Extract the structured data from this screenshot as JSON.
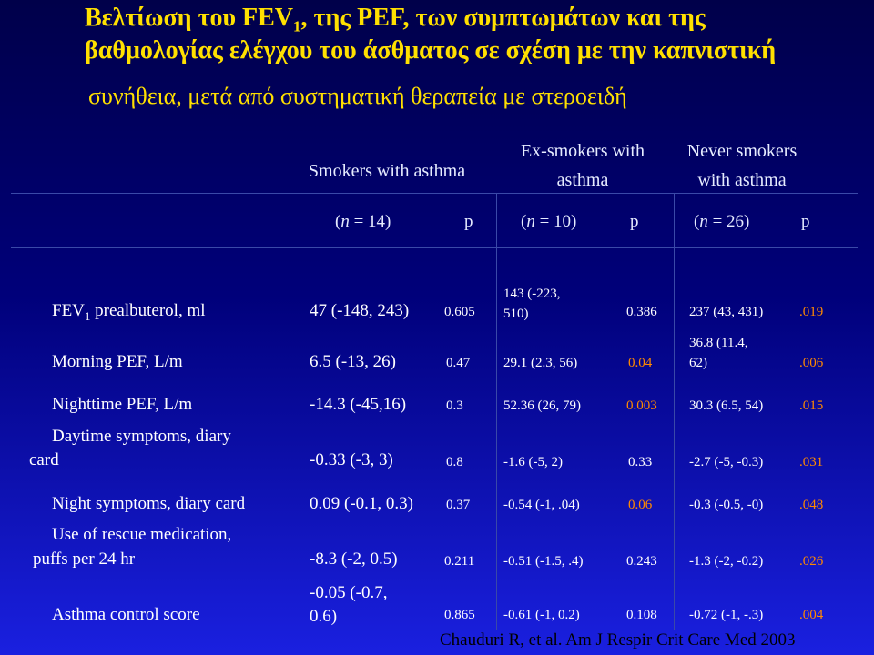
{
  "title": {
    "line1_a": "Βελτίωση του FEV",
    "line1_sub": "1",
    "line1_b": ", της PEF, των συμπτωμάτων και της",
    "line2": "βαθμολογίας ελέγχου του άσθματος σε σχέση με την καπνιστική",
    "line3": "συνήθεια, μετά από συστηματική θεραπεία με στεροειδή"
  },
  "groups": [
    {
      "line1": "Smokers with asthma",
      "line2": ""
    },
    {
      "line1": "Ex-smokers with",
      "line2": "asthma"
    },
    {
      "line1": "Never smokers",
      "line2": "with asthma"
    }
  ],
  "subheader": {
    "n1_open": "(",
    "n1_n": "n",
    "n1_rest": " = 14)",
    "n2_open": "(",
    "n2_n": "n",
    "n2_rest": " = 10)",
    "n3_open": "(",
    "n3_n": "n",
    "n3_rest": " = 26)",
    "p": "p"
  },
  "rows": [
    {
      "label": "FEV",
      "label_sub": "1",
      "label_rest": " prealbuterol, ml",
      "v1": "47 (-148, 243)",
      "p1": "0.605",
      "v2a": "143 (-223,",
      "v2b": "510)",
      "p2": "0.386",
      "v3a": "237 (43, 431)",
      "v3b": "",
      "p3": ".019"
    },
    {
      "label": "Morning PEF, L/m",
      "v1": "6.5 (-13, 26)",
      "p1": "0.47",
      "v2a": "29.1 (2.3, 56)",
      "p2": "0.04",
      "v3a": "36.8 (11.4,",
      "v3b": "62)",
      "p3": ".006"
    },
    {
      "label": "Nighttime PEF, L/m",
      "v1": "-14.3 (-45,16)",
      "p1": "0.3",
      "v2a": "52.36 (26, 79)",
      "p2": "0.003",
      "v3a": "30.3 (6.5, 54)",
      "p3": ".015"
    },
    {
      "label_a": "Daytime symptoms, diary",
      "label_b": "card",
      "v1": "-0.33 (-3, 3)",
      "p1": "0.8",
      "v2a": "-1.6 (-5, 2)",
      "p2": "0.33",
      "v3a": "-2.7 (-5, -0.3)",
      "p3": ".031"
    },
    {
      "label": "Night symptoms, diary card",
      "v1": "0.09 (-0.1, 0.3)",
      "p1": "0.37",
      "v2a": "-0.54 (-1, .04)",
      "p2": "0.06",
      "v3a": "-0.3 (-0.5, -0)",
      "p3": ".048"
    },
    {
      "label_a": "Use of rescue medication,",
      "label_b": "puffs per 24 hr",
      "v1": "-8.3 (-2, 0.5)",
      "p1": "0.211",
      "v2a": "-0.51 (-1.5, .4)",
      "p2": "0.243",
      "v3a": "-1.3 (-2, -0.2)",
      "p3": ".026"
    },
    {
      "label": "Asthma control score",
      "v1a": "-0.05 (-0.7,",
      "v1b": "0.6)",
      "p1": "0.865",
      "v2a": "-0.61 (-1, 0.2)",
      "p2": "0.108",
      "v3a": "-0.72 (-1, -.3)",
      "p3": ".004"
    }
  ],
  "citation": "Chauduri R, et al. Am J Respir Crit Care Med 2003",
  "colors": {
    "title": "#ffe000",
    "p_highlight": "#ff8a00",
    "text": "#ffffff",
    "background_top": "#00004a",
    "background_bottom": "#1a20e0"
  }
}
